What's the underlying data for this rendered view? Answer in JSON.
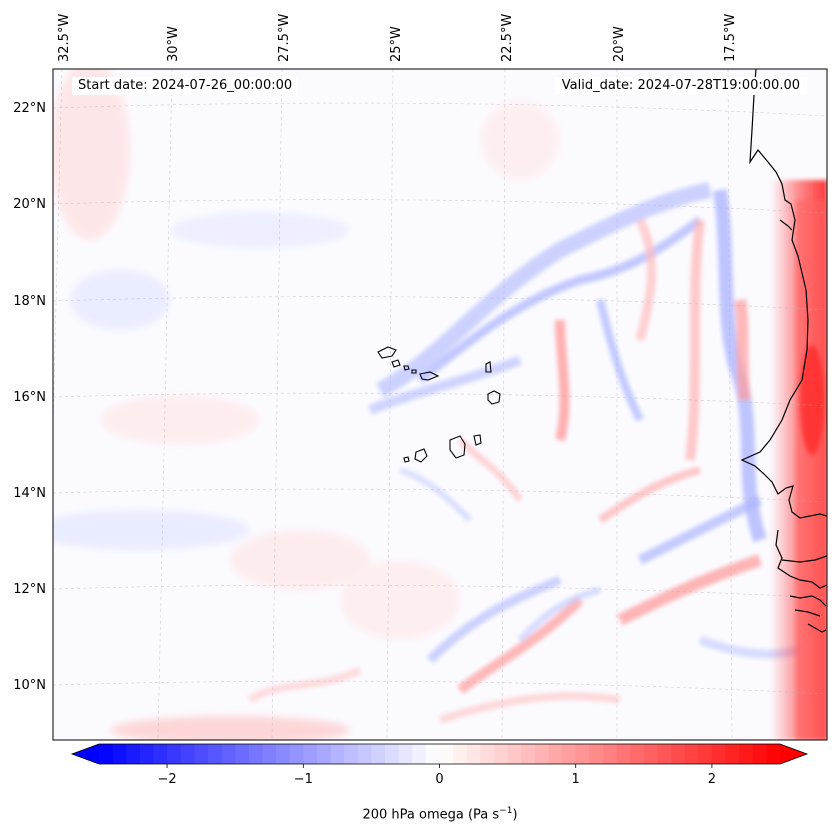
{
  "map": {
    "start_date": "Start date: 2024-07-26_00:00:00",
    "valid_date": "Valid_date: 2024-07-28T19:00:00.00",
    "lon_labels": [
      "32.5°W",
      "30°W",
      "27.5°W",
      "25°W",
      "22.5°W",
      "20°W",
      "17.5°W"
    ],
    "lat_labels": [
      "22°N",
      "20°N",
      "18°N",
      "16°N",
      "14°N",
      "12°N",
      "10°N"
    ],
    "field": "200 hPa omega",
    "region": "Cape Verde and West African coast"
  },
  "colorbar": {
    "ticks": [
      {
        "value": -2,
        "label": "−2"
      },
      {
        "value": -1,
        "label": "−1"
      },
      {
        "value": 0,
        "label": "0"
      },
      {
        "value": 1,
        "label": "1"
      },
      {
        "value": 2,
        "label": "2"
      }
    ],
    "range": [
      -2.5,
      2.5
    ],
    "label_text": "200 hPa omega (Pa s",
    "label_exp": "−1",
    "label_end": ")",
    "cmap": {
      "neg": "#0000ff",
      "zero": "#ffffff",
      "pos": "#ff0000"
    }
  }
}
